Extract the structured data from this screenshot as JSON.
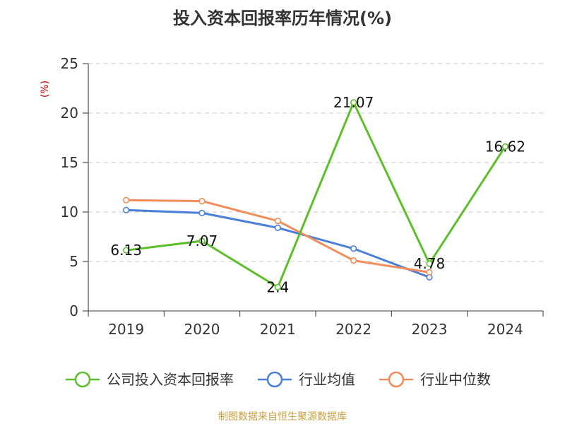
{
  "chart_data": {
    "type": "line",
    "title": "投入资本回报率历年情况(%)",
    "ylabel": "(%)",
    "xlabel": "",
    "categories": [
      "2019",
      "2020",
      "2021",
      "2022",
      "2023",
      "2024"
    ],
    "ylim": [
      0,
      25
    ],
    "yticks": [
      "0",
      "5",
      "10",
      "15",
      "20",
      "25"
    ],
    "grid": "horizontal dashed",
    "legend_position": "bottom",
    "series": [
      {
        "name": "公司投入资本回报率",
        "color": "#5cbf29",
        "values": [
          6.13,
          7.07,
          2.4,
          21.07,
          4.78,
          16.62
        ],
        "data_labels": [
          "6.13",
          "7.07",
          "2.4",
          "21.07",
          "4.78",
          "16.62"
        ]
      },
      {
        "name": "行业均值",
        "color": "#4a7fd9",
        "values": [
          10.2,
          9.9,
          8.4,
          6.3,
          3.4,
          null
        ]
      },
      {
        "name": "行业中位数",
        "color": "#f28c5a",
        "values": [
          11.2,
          11.1,
          9.1,
          5.1,
          3.9,
          null
        ]
      }
    ],
    "source": "制图数据来自恒生聚源数据库"
  }
}
